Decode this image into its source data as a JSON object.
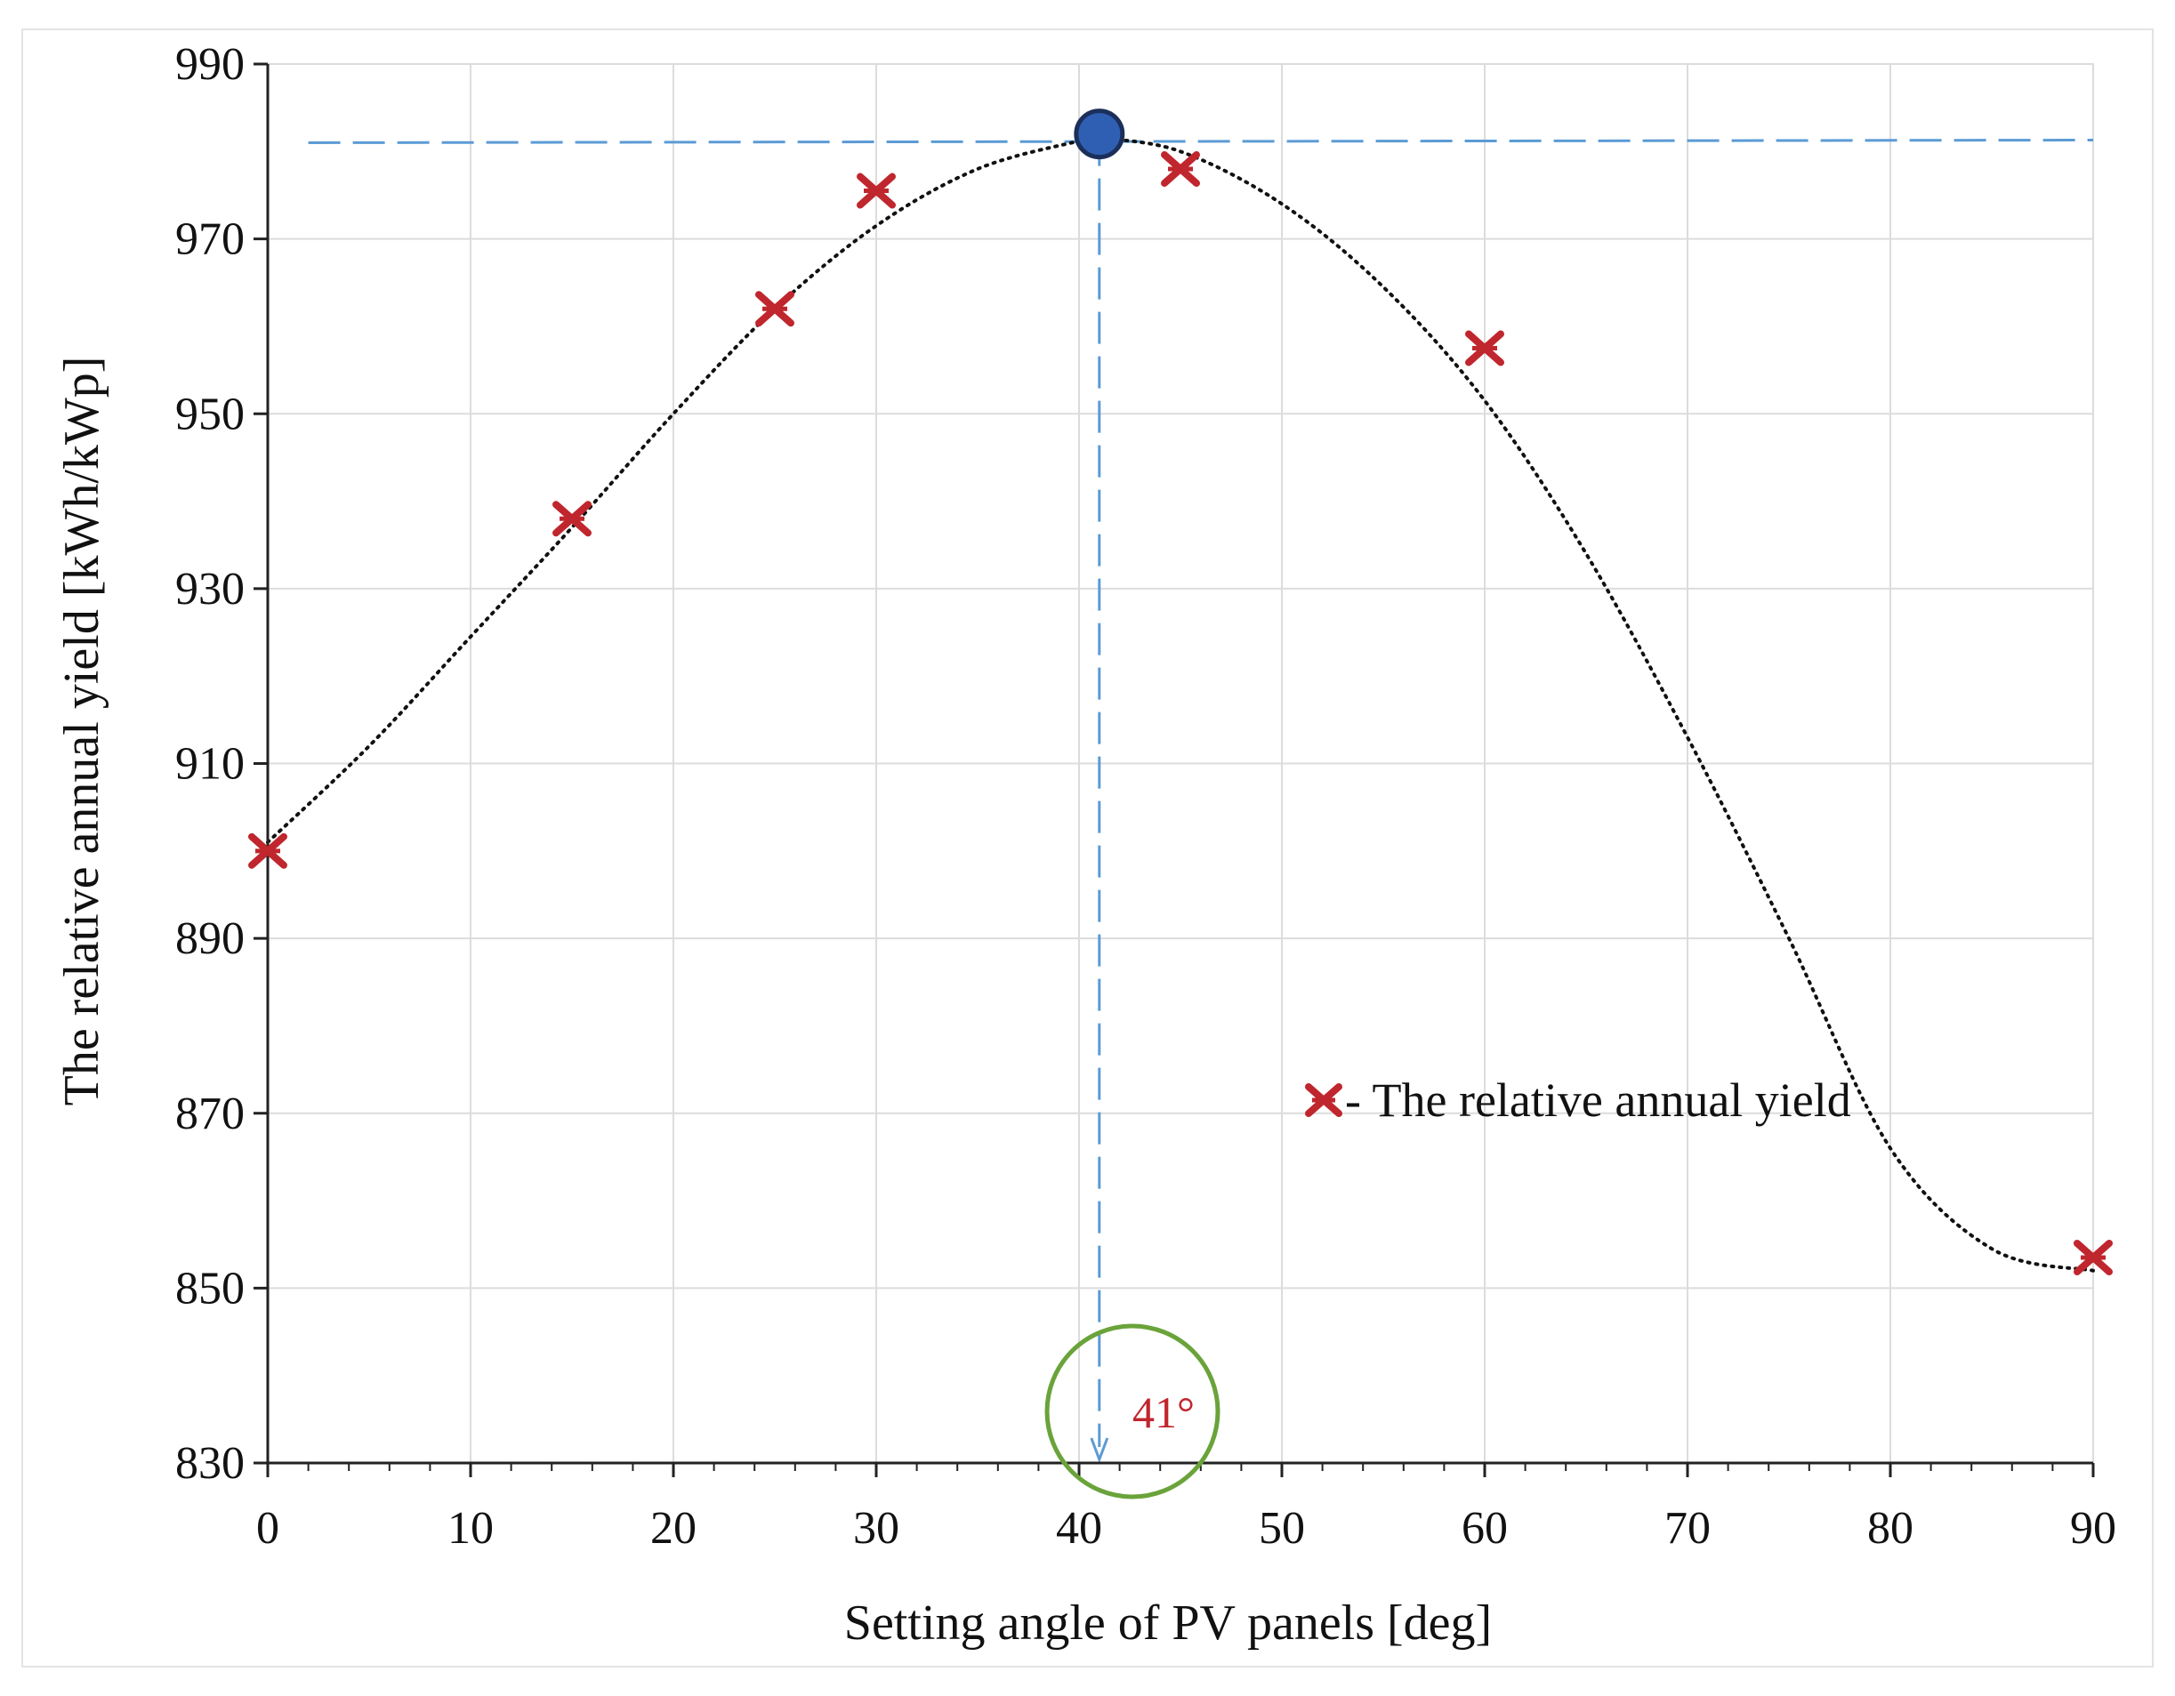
{
  "chart_data": {
    "type": "scatter",
    "title": "",
    "xlabel": "Setting angle of PV panels [deg]",
    "ylabel": "The relative annual yield [kWh/kWp]",
    "xlim": [
      0,
      90
    ],
    "ylim": [
      830,
      990
    ],
    "xticks": [
      0,
      10,
      20,
      30,
      40,
      50,
      60,
      70,
      80,
      90
    ],
    "yticks": [
      830,
      850,
      870,
      890,
      910,
      930,
      950,
      970,
      990
    ],
    "grid": true,
    "series": [
      {
        "name": "The relative annual yield",
        "marker": "x",
        "color": "#c0262d",
        "x": [
          0,
          15,
          25,
          30,
          45,
          60,
          90
        ],
        "y": [
          900,
          938,
          962,
          975.5,
          978,
          957.5,
          853.5
        ]
      }
    ],
    "trendline": {
      "style": "dotted",
      "color": "#111111",
      "x": [
        0,
        5,
        10,
        15,
        20,
        25,
        30,
        35,
        40,
        41,
        45,
        50,
        55,
        60,
        65,
        70,
        75,
        80,
        85,
        90
      ],
      "y": [
        901,
        912,
        924.5,
        937,
        950,
        962,
        971.5,
        978,
        981.2,
        981.5,
        980,
        974,
        964.5,
        951.5,
        934,
        913,
        890,
        866,
        854.5,
        852
      ]
    },
    "optimum": {
      "x": 41,
      "y": 982,
      "color": "#2f5fb3"
    },
    "reference_line": {
      "y": 981,
      "color": "#5b9bd5"
    },
    "annotation": {
      "text": "41°",
      "x": 41,
      "color": "#c0262d",
      "circle_color": "#6aa33a"
    },
    "legend": {
      "marker_label": "- The relative annual yield",
      "placement": "center-right"
    }
  }
}
